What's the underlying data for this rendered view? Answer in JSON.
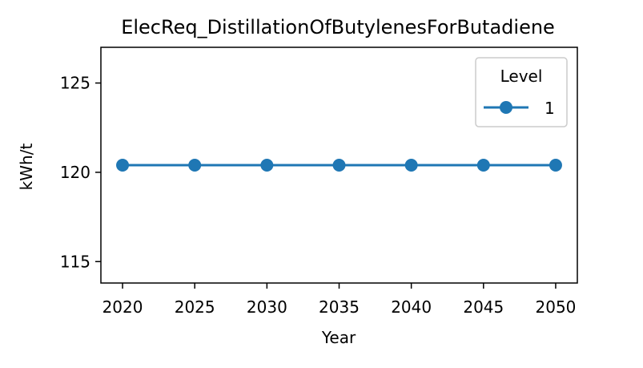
{
  "chart_data": {
    "type": "line",
    "title": "ElecReq_DistillationOfButylenesForButadiene",
    "xlabel": "Year",
    "ylabel": "kWh/t",
    "x": [
      2020,
      2025,
      2030,
      2035,
      2040,
      2045,
      2050
    ],
    "x_ticks": [
      2020,
      2025,
      2030,
      2035,
      2040,
      2045,
      2050
    ],
    "xlim": [
      2018.5,
      2051.5
    ],
    "y_ticks": [
      115,
      120,
      125
    ],
    "ylim": [
      113.8,
      127.0
    ],
    "grid": false,
    "legend": {
      "title": "Level",
      "position": "top-right"
    },
    "series": [
      {
        "name": "1",
        "color": "#1f77b4",
        "marker": "circle",
        "values": [
          120.4,
          120.4,
          120.4,
          120.4,
          120.4,
          120.4,
          120.4
        ]
      }
    ]
  }
}
